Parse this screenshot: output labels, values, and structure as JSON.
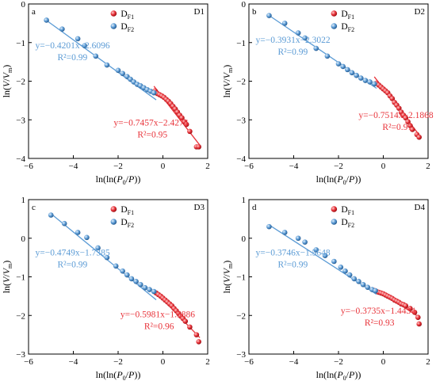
{
  "colors": {
    "f1": "#e8333a",
    "f2": "#5b9bd5",
    "axis": "#000000"
  },
  "chart_data": [
    {
      "type": "scatter",
      "panel_letter": "a",
      "panel_tag": "D1",
      "xlabel": "ln(ln(P0/P))",
      "ylabel": "ln(V/Vm)",
      "xlim": [
        -6,
        2
      ],
      "ylim": [
        -4,
        0
      ],
      "xticks": [
        "−6",
        "−4",
        "−2",
        "0",
        "2"
      ],
      "yticks": [
        "−4",
        "−3",
        "−2",
        "−1",
        "0"
      ],
      "legend": [
        "DF1",
        "DF2"
      ],
      "series": [
        {
          "name": "DF1",
          "x": [
            -0.35,
            -0.25,
            -0.15,
            -0.05,
            0.05,
            0.15,
            0.25,
            0.35,
            0.45,
            0.55,
            0.65,
            0.75,
            0.85,
            0.95,
            1.05,
            1.2,
            1.5,
            1.6
          ],
          "y": [
            -2.25,
            -2.32,
            -2.35,
            -2.38,
            -2.42,
            -2.47,
            -2.52,
            -2.58,
            -2.65,
            -2.72,
            -2.8,
            -2.88,
            -2.95,
            -3.05,
            -3.12,
            -3.3,
            -3.7,
            -3.7
          ],
          "fit": {
            "slope": -0.7457,
            "intercept": -2.4274,
            "range": [
              -0.4,
              1.65
            ]
          },
          "eq": "y=−0.7457x−2.4274",
          "r2": "R²=0.95"
        },
        {
          "name": "DF2",
          "x": [
            -5.2,
            -4.5,
            -3.8,
            -3.5,
            -3.0,
            -2.5,
            -2.0,
            -1.8,
            -1.6,
            -1.45,
            -1.3,
            -1.15,
            -1.0,
            -0.85,
            -0.7,
            -0.55,
            -0.4
          ],
          "y": [
            -0.42,
            -0.65,
            -0.9,
            -1.08,
            -1.35,
            -1.58,
            -1.72,
            -1.8,
            -1.88,
            -1.95,
            -2.02,
            -2.08,
            -2.12,
            -2.17,
            -2.22,
            -2.26,
            -2.3
          ],
          "fit": {
            "slope": -0.4201,
            "intercept": -2.6096,
            "range": [
              -5.2,
              -0.3
            ]
          },
          "eq": "y=−0.4201x−2.6096",
          "r2": "R²=0.99"
        }
      ]
    },
    {
      "type": "scatter",
      "panel_letter": "b",
      "panel_tag": "D2",
      "xlabel": "ln(ln(P0/P))",
      "ylabel": "ln(V/Vm)",
      "xlim": [
        -6,
        2
      ],
      "ylim": [
        -4,
        0
      ],
      "xticks": [
        "−6",
        "−4",
        "−2",
        "0",
        "2"
      ],
      "yticks": [
        "−4",
        "−3",
        "−2",
        "−1",
        "0"
      ],
      "legend": [
        "DF1",
        "DF2"
      ],
      "series": [
        {
          "name": "DF1",
          "x": [
            -0.3,
            -0.2,
            -0.1,
            0.0,
            0.1,
            0.2,
            0.3,
            0.4,
            0.5,
            0.6,
            0.7,
            0.8,
            0.9,
            1.0,
            1.1,
            1.2,
            1.3,
            1.5,
            1.6
          ],
          "y": [
            -2.05,
            -2.1,
            -2.15,
            -2.2,
            -2.25,
            -2.3,
            -2.38,
            -2.45,
            -2.55,
            -2.62,
            -2.7,
            -2.8,
            -2.88,
            -2.95,
            -3.05,
            -3.15,
            -3.25,
            -3.38,
            -3.45
          ],
          "fit": {
            "slope": -0.7514,
            "intercept": -2.1868,
            "range": [
              -0.4,
              1.65
            ]
          },
          "eq": "y=−0.7514x−2.1868",
          "r2": "R²=0.97"
        },
        {
          "name": "DF2",
          "x": [
            -5.1,
            -4.4,
            -3.8,
            -3.5,
            -3.0,
            -2.5,
            -2.0,
            -1.8,
            -1.6,
            -1.4,
            -1.2,
            -1.0,
            -0.8,
            -0.6,
            -0.4
          ],
          "y": [
            -0.3,
            -0.5,
            -0.75,
            -0.88,
            -1.15,
            -1.35,
            -1.55,
            -1.62,
            -1.7,
            -1.78,
            -1.85,
            -1.92,
            -1.98,
            -2.02,
            -2.07
          ],
          "fit": {
            "slope": -0.3931,
            "intercept": -2.3022,
            "range": [
              -5.1,
              -0.3
            ]
          },
          "eq": "y=−0.3931x−2.3022",
          "r2": "R²=0.99"
        }
      ]
    },
    {
      "type": "scatter",
      "panel_letter": "c",
      "panel_tag": "D3",
      "xlabel": "ln(ln(P0/P))",
      "ylabel": "ln(V/Vm)",
      "xlim": [
        -6,
        2
      ],
      "ylim": [
        -3,
        1
      ],
      "xticks": [
        "−6",
        "−4",
        "−2",
        "0",
        "2"
      ],
      "yticks": [
        "−3",
        "−2",
        "−1",
        "0",
        "1"
      ],
      "legend": [
        "DF1",
        "DF2"
      ],
      "series": [
        {
          "name": "DF1",
          "x": [
            -0.3,
            -0.2,
            -0.1,
            0.0,
            0.1,
            0.2,
            0.3,
            0.4,
            0.5,
            0.6,
            0.7,
            0.8,
            0.9,
            1.0,
            1.2,
            1.5,
            1.6
          ],
          "y": [
            -1.42,
            -1.46,
            -1.5,
            -1.55,
            -1.6,
            -1.65,
            -1.7,
            -1.75,
            -1.82,
            -1.88,
            -1.95,
            -2.02,
            -2.08,
            -2.15,
            -2.3,
            -2.5,
            -2.68
          ],
          "fit": {
            "slope": -0.5981,
            "intercept": -1.5886,
            "range": [
              -0.4,
              1.65
            ]
          },
          "eq": "y=−0.5981x−1.5886",
          "r2": "R²=0.96"
        },
        {
          "name": "DF2",
          "x": [
            -5.0,
            -4.4,
            -3.8,
            -3.4,
            -2.9,
            -2.5,
            -2.1,
            -1.8,
            -1.6,
            -1.4,
            -1.2,
            -1.0,
            -0.8,
            -0.6,
            -0.4
          ],
          "y": [
            0.6,
            0.38,
            0.15,
            0.02,
            -0.25,
            -0.5,
            -0.72,
            -0.85,
            -0.95,
            -1.05,
            -1.12,
            -1.2,
            -1.28,
            -1.33,
            -1.38
          ],
          "fit": {
            "slope": -0.4749,
            "intercept": -1.7385,
            "range": [
              -5.0,
              -0.3
            ]
          },
          "eq": "y=−0.4749x−1.7385",
          "r2": "R²=0.99"
        }
      ]
    },
    {
      "type": "scatter",
      "panel_letter": "d",
      "panel_tag": "D4",
      "xlabel": "ln(ln(P0/P))",
      "ylabel": "ln(V/Vm)",
      "xlim": [
        -6,
        2
      ],
      "ylim": [
        -3,
        1
      ],
      "xticks": [
        "−6",
        "−4",
        "−2",
        "0",
        "2"
      ],
      "yticks": [
        "−3",
        "−2",
        "−1",
        "0",
        "1"
      ],
      "legend": [
        "DF1",
        "DF2"
      ],
      "series": [
        {
          "name": "DF1",
          "x": [
            -0.3,
            -0.2,
            -0.1,
            0.0,
            0.1,
            0.2,
            0.3,
            0.4,
            0.5,
            0.6,
            0.7,
            0.8,
            0.9,
            1.0,
            1.2,
            1.4,
            1.55,
            1.6
          ],
          "y": [
            -1.38,
            -1.4,
            -1.42,
            -1.44,
            -1.47,
            -1.5,
            -1.53,
            -1.56,
            -1.6,
            -1.63,
            -1.66,
            -1.7,
            -1.72,
            -1.75,
            -1.82,
            -1.92,
            -2.05,
            -2.22
          ],
          "fit": {
            "slope": -0.3735,
            "intercept": -1.4434,
            "range": [
              -0.4,
              1.65
            ]
          },
          "eq": "y=−0.3735x−1.4434",
          "r2": "R²=0.93"
        },
        {
          "name": "DF2",
          "x": [
            -5.1,
            -4.4,
            -3.8,
            -3.5,
            -3.0,
            -2.6,
            -2.2,
            -1.9,
            -1.7,
            -1.5,
            -1.3,
            -1.1,
            -0.9,
            -0.7,
            -0.5,
            -0.35
          ],
          "y": [
            0.3,
            0.15,
            0.0,
            -0.1,
            -0.3,
            -0.45,
            -0.6,
            -0.75,
            -0.85,
            -0.95,
            -1.05,
            -1.12,
            -1.2,
            -1.27,
            -1.33,
            -1.36
          ],
          "fit": {
            "slope": -0.3746,
            "intercept": -1.5648,
            "range": [
              -5.1,
              -0.3
            ]
          },
          "eq": "y=−0.3746x−1.5648",
          "r2": "R²=0.99"
        }
      ]
    }
  ]
}
